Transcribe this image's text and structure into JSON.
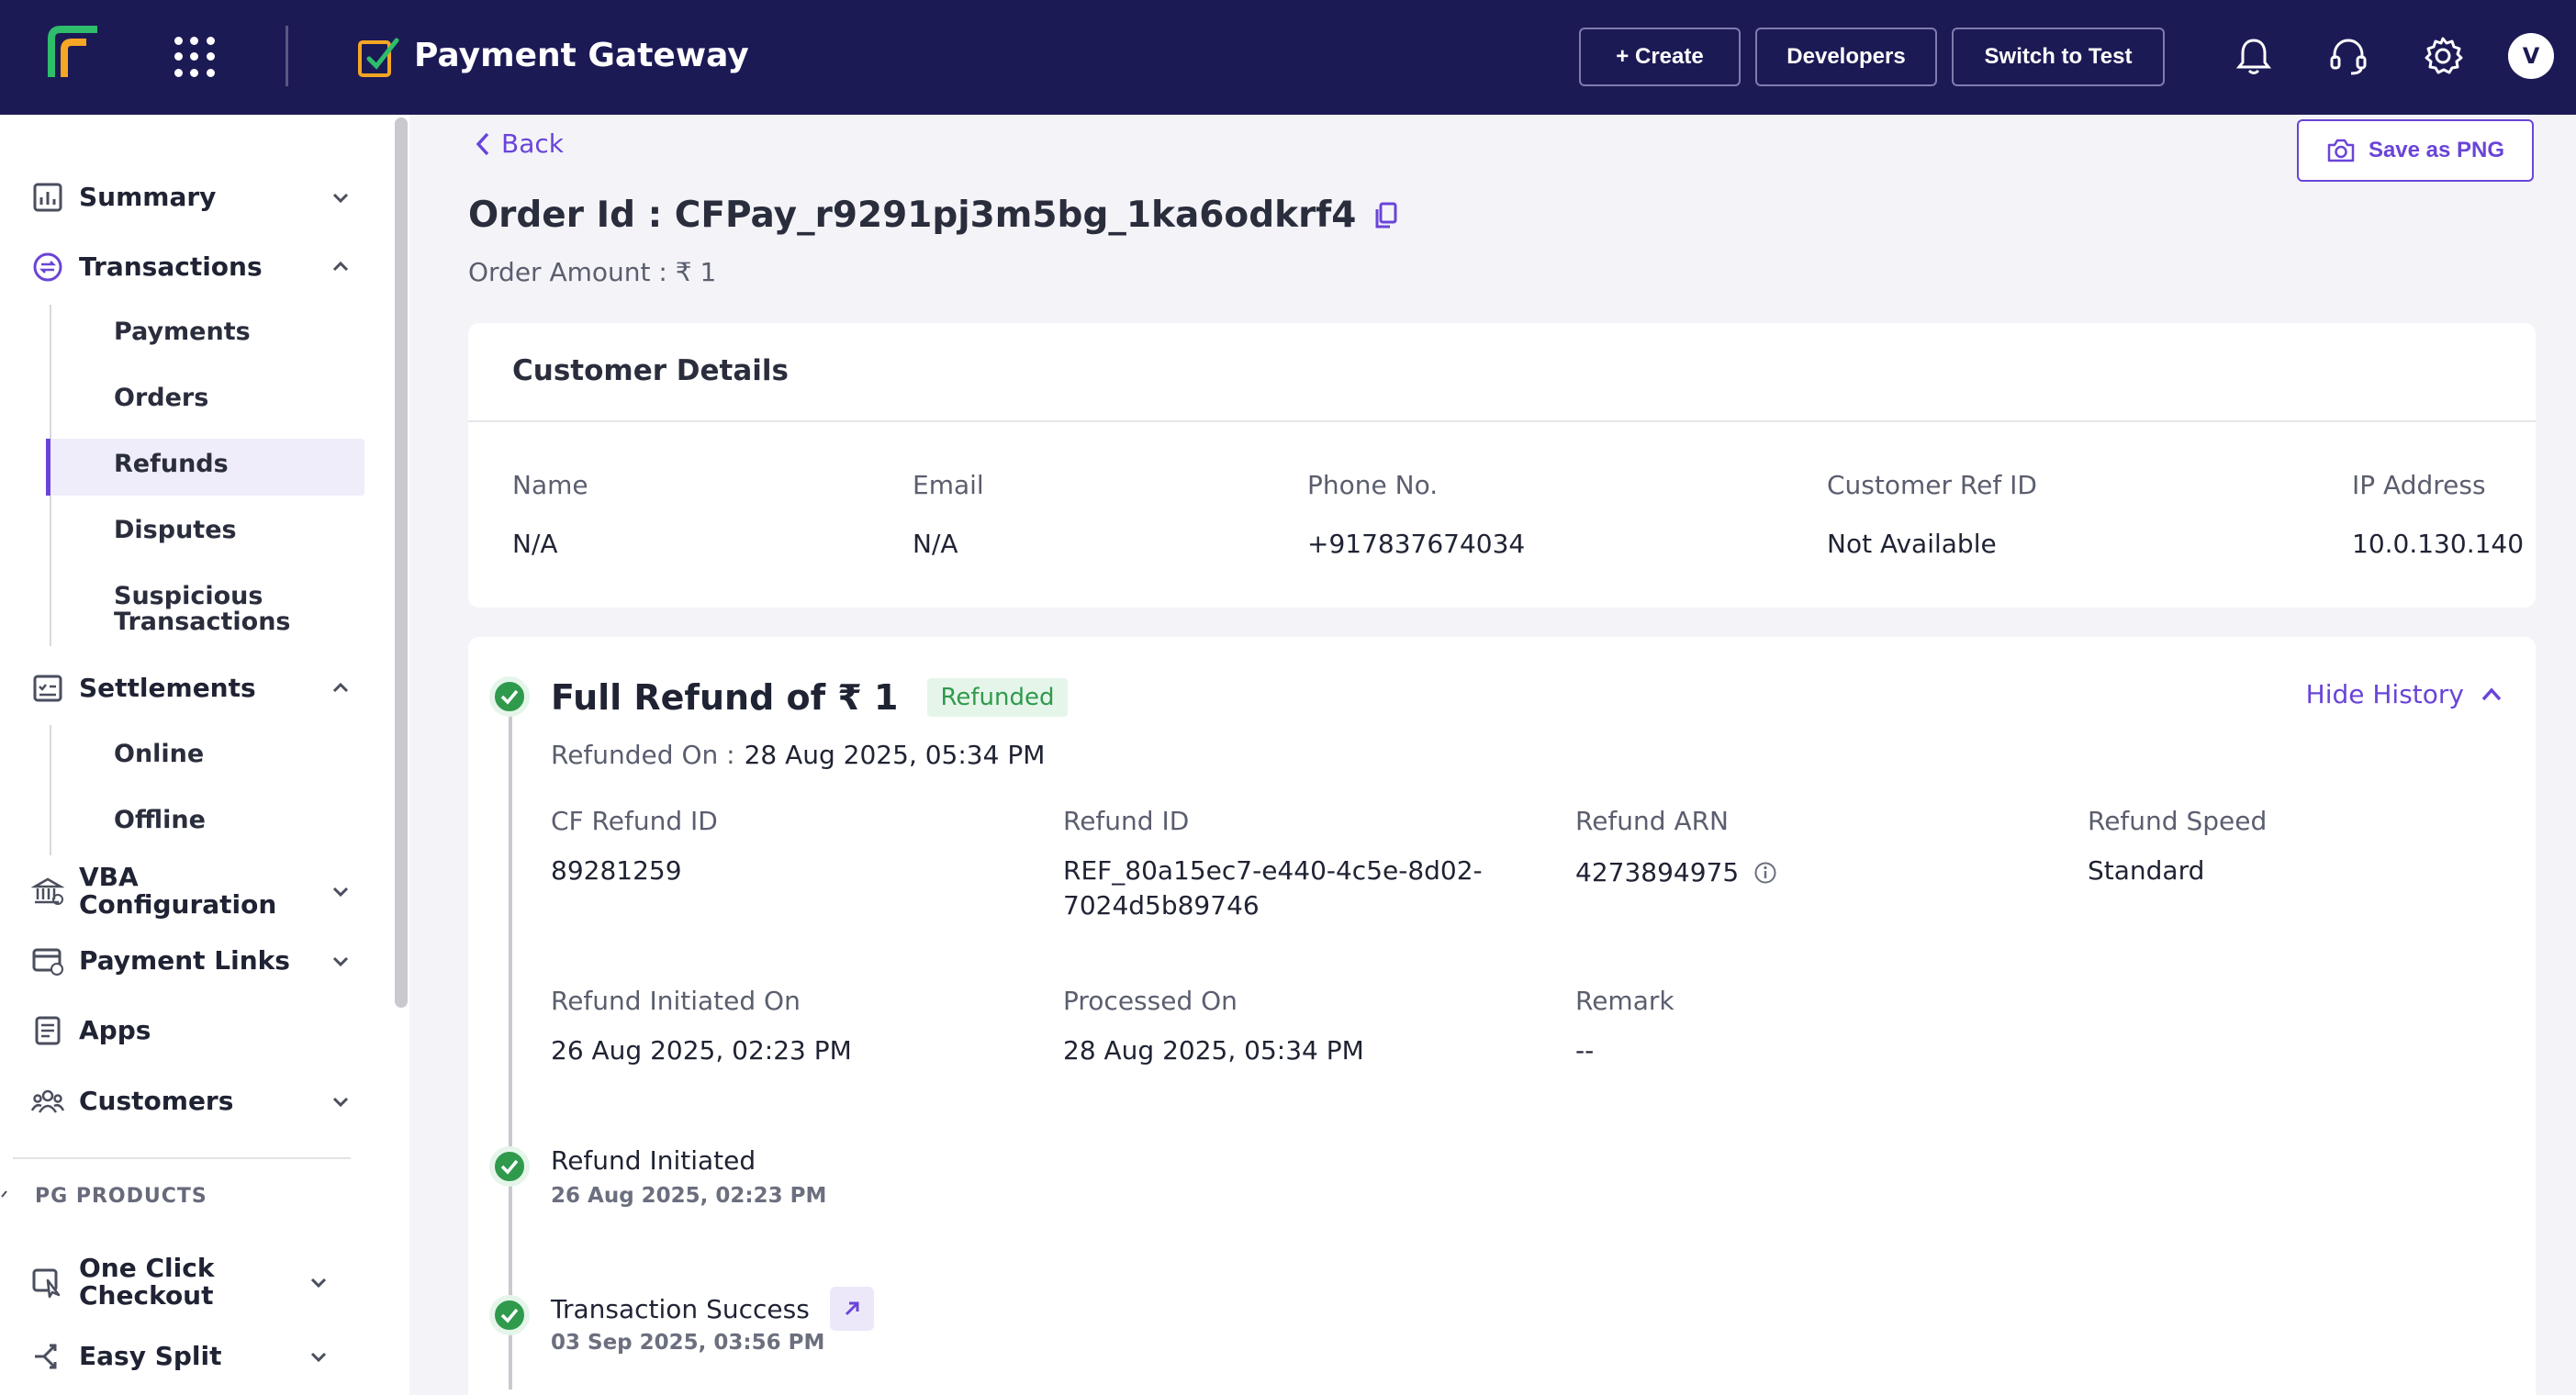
{
  "topbar": {
    "brand": "Payment Gateway",
    "create_label": "+ Create",
    "developers_label": "Developers",
    "switch_label": "Switch to Test",
    "avatar_initial": "V"
  },
  "sidebar": {
    "items": {
      "summary": "Summary",
      "transactions": "Transactions",
      "settlements": "Settlements",
      "vba": "VBA Configuration",
      "payment_links": "Payment Links",
      "apps": "Apps",
      "customers": "Customers",
      "one_click": "One Click\nCheckout",
      "easy_split": "Easy Split"
    },
    "transactions_sub": {
      "payments": "Payments",
      "orders": "Orders",
      "refunds": "Refunds",
      "disputes": "Disputes",
      "suspicious": "Suspicious\nTransactions"
    },
    "settlements_sub": {
      "online": "Online",
      "offline": "Offline"
    },
    "section_label": "PG PRODUCTS"
  },
  "page": {
    "back_label": "Back",
    "save_label": "Save as PNG",
    "order_title": "Order Id : CFPay_r9291pj3m5bg_1ka6odkrf4",
    "order_amount": "Order Amount : ₹ 1"
  },
  "customer": {
    "title": "Customer Details",
    "name_label": "Name",
    "name_value": "N/A",
    "email_label": "Email",
    "email_value": "N/A",
    "phone_label": "Phone No.",
    "phone_value": "+917837674034",
    "ref_label": "Customer Ref ID",
    "ref_value": "Not Available",
    "ip_label": "IP Address",
    "ip_value": "10.0.130.140"
  },
  "refund": {
    "title": "Full Refund of ₹ 1",
    "status": "Refunded",
    "hide_history": "Hide History",
    "refunded_on_label": "Refunded On :",
    "refunded_on_value": "28 Aug 2025, 05:34 PM",
    "cf_refund_id_label": "CF Refund ID",
    "cf_refund_id_value": "89281259",
    "refund_id_label": "Refund ID",
    "refund_id_value_1": "REF_80a15ec7-e440-4c5e-8d02-",
    "refund_id_value_2": "7024d5b89746",
    "arn_label": "Refund ARN",
    "arn_value": "4273894975",
    "speed_label": "Refund Speed",
    "speed_value": "Standard",
    "initiated_label": "Refund Initiated On",
    "initiated_value": "26 Aug 2025, 02:23 PM",
    "processed_label": "Processed On",
    "processed_value": "28 Aug 2025, 05:34 PM",
    "remark_label": "Remark",
    "remark_value": "--"
  },
  "timeline": [
    {
      "title": "Refund Initiated",
      "date": "26 Aug 2025, 02:23 PM"
    },
    {
      "title": "Transaction Success",
      "date": "03 Sep 2025, 03:56 PM"
    }
  ],
  "colors": {
    "topbar": "#1c1a55",
    "accent": "#6a44d8",
    "success": "#2f9a4c"
  }
}
